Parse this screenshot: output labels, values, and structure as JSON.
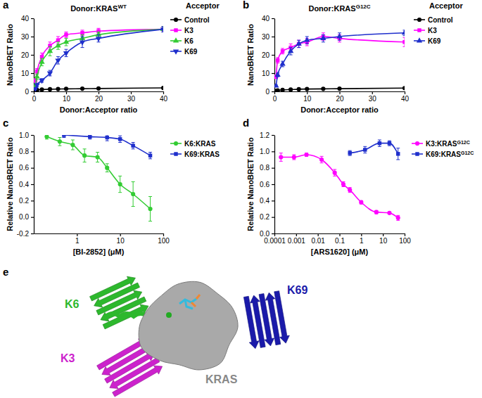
{
  "chart_data": [
    {
      "panel_label": "a",
      "type": "line",
      "title": {
        "text": "Donor:KRAS",
        "superscript": "WT"
      },
      "x_label": "Donor:Acceptor ratio",
      "y_label": "NanoBRET Ratio",
      "legend_title": "Acceptor",
      "legend": "right",
      "x": [
        0.5,
        1,
        2.5,
        5,
        7.5,
        10,
        15,
        20,
        40
      ],
      "xlim": [
        0,
        40
      ],
      "xticks": [
        0,
        10,
        20,
        30,
        40
      ],
      "ylim": [
        0,
        40
      ],
      "yticks": [
        0,
        10,
        20,
        30,
        40
      ],
      "series": [
        {
          "name": "Control",
          "color": "#000000",
          "marker": "circle",
          "values": [
            0.5,
            0.8,
            1,
            1.2,
            1.3,
            1.4,
            1.5,
            1.6,
            1.9
          ],
          "errors": [
            0.1,
            0.1,
            0.1,
            0.1,
            0.1,
            0.1,
            0.1,
            0.1,
            0.1
          ]
        },
        {
          "name": "K3",
          "color": "#ff00ff",
          "marker": "square",
          "values": [
            6,
            11,
            19,
            25,
            28,
            31,
            32,
            33,
            34
          ],
          "errors": [
            1,
            1.5,
            2,
            2,
            2,
            1.5,
            1.5,
            1.5,
            1.5
          ]
        },
        {
          "name": "K6",
          "color": "#33cc33",
          "marker": "triangle-up",
          "values": [
            3,
            8,
            16,
            22,
            25,
            27,
            29,
            31,
            34
          ],
          "errors": [
            1,
            1.5,
            2,
            2.5,
            2,
            2,
            2,
            1.5,
            1.5
          ]
        },
        {
          "name": "K69",
          "color": "#1f2fcc",
          "marker": "triangle-down",
          "values": [
            1.5,
            3.5,
            6,
            10,
            17,
            21,
            27,
            29,
            34
          ],
          "errors": [
            0.5,
            1,
            1,
            1.5,
            2,
            2,
            3,
            2,
            1.5
          ]
        }
      ]
    },
    {
      "panel_label": "b",
      "type": "line",
      "title": {
        "text": "Donor:KRAS",
        "superscript": "G12C"
      },
      "x_label": "Donor:Acceptor ratio",
      "y_label": "NanoBRET Ratio",
      "legend_title": "Acceptor",
      "legend": "right",
      "x": [
        0.5,
        1,
        2.5,
        5,
        7.5,
        10,
        15,
        20,
        40
      ],
      "xlim": [
        0,
        40
      ],
      "xticks": [
        0,
        10,
        20,
        30,
        40
      ],
      "ylim": [
        0,
        40
      ],
      "yticks": [
        0,
        10,
        20,
        30,
        40
      ],
      "series": [
        {
          "name": "Control",
          "color": "#000000",
          "marker": "circle",
          "values": [
            0.3,
            0.5,
            0.8,
            1,
            1.2,
            1.3,
            1.4,
            1.5,
            1.8
          ],
          "errors": [
            0.1,
            0.1,
            0.1,
            0.1,
            0.1,
            0.1,
            0.1,
            0.1,
            0.1
          ]
        },
        {
          "name": "K3",
          "color": "#ff00ff",
          "marker": "square",
          "values": [
            8,
            17,
            22,
            24,
            26,
            27,
            30,
            29,
            27
          ],
          "errors": [
            1,
            1.5,
            1.5,
            2,
            2,
            2,
            2,
            2,
            2.5
          ]
        },
        {
          "name": "K69",
          "color": "#1f2fcc",
          "marker": "triangle-up",
          "values": [
            3,
            9,
            15,
            22,
            26,
            28,
            29,
            30,
            32
          ],
          "errors": [
            0.5,
            1,
            1.5,
            2,
            2,
            2,
            2,
            2,
            1.5
          ]
        }
      ]
    },
    {
      "panel_label": "c",
      "type": "line",
      "log": "x",
      "x_label": "[BI-2852] (μM)",
      "y_label": "Relative NanoBRET Ratio",
      "legend": "right",
      "xlim": [
        0.1,
        100
      ],
      "xticks": [
        1,
        10,
        100
      ],
      "ylim": [
        -0.2,
        1.0
      ],
      "yticks": [
        -0.2,
        {
          "value": 0,
          "label": "0.0"
        },
        0.2,
        0.4,
        0.6,
        0.8,
        {
          "value": 1,
          "label": "1.0"
        }
      ],
      "series": [
        {
          "name": "K6:KRAS",
          "color": "#33cc33",
          "marker": "circle",
          "x": [
            0.2,
            0.4,
            0.8,
            1.5,
            3,
            5,
            10,
            20,
            50
          ],
          "values": [
            0.98,
            0.92,
            0.88,
            0.75,
            0.73,
            0.6,
            0.4,
            0.28,
            0.1
          ],
          "errors": [
            0.03,
            0.05,
            0.06,
            0.08,
            0.06,
            0.05,
            0.1,
            0.15,
            0.15
          ]
        },
        {
          "name": "K69:KRAS",
          "color": "#1f2fcc",
          "marker": "square",
          "x": [
            0.5,
            2,
            5,
            10,
            20,
            50
          ],
          "values": [
            1.0,
            0.98,
            0.97,
            0.95,
            0.87,
            0.75
          ],
          "errors": [
            0.03,
            0.03,
            0.04,
            0.04,
            0.04,
            0.04
          ]
        }
      ]
    },
    {
      "panel_label": "d",
      "type": "line",
      "log": "x",
      "x_label": "[ARS1620] (μM)",
      "y_label": "Relative NanoBRET Ratio",
      "legend": "right",
      "xlim": [
        0.0001,
        100
      ],
      "xticks": [
        0.0001,
        0.001,
        0.01,
        0.1,
        1,
        10,
        100
      ],
      "ylim": [
        0,
        1.2
      ],
      "yticks": [
        {
          "value": 0,
          "label": "0.0"
        },
        0.2,
        0.4,
        0.6,
        0.8,
        {
          "value": 1,
          "label": "1.0"
        },
        1.2
      ],
      "series": [
        {
          "name": "K3:KRAS",
          "name_superscript": "G12C",
          "color": "#ff00ff",
          "marker": "circle",
          "x": [
            0.0002,
            0.0008,
            0.003,
            0.015,
            0.06,
            0.15,
            0.3,
            1,
            5,
            20,
            50
          ],
          "values": [
            0.93,
            0.93,
            0.96,
            0.9,
            0.74,
            0.6,
            0.53,
            0.38,
            0.26,
            0.25,
            0.19
          ],
          "errors": [
            0.05,
            0.03,
            0.02,
            0.04,
            0.04,
            0.03,
            0.03,
            0.02,
            0.02,
            0.01,
            0.03
          ]
        },
        {
          "name": "K69:KRAS",
          "name_superscript": "G12C",
          "color": "#1f2fcc",
          "marker": "square",
          "x": [
            0.3,
            1.5,
            7,
            20,
            50
          ],
          "values": [
            0.98,
            1.02,
            1.1,
            1.1,
            0.97
          ],
          "errors": [
            0.03,
            0.04,
            0.04,
            0.03,
            0.07
          ]
        }
      ]
    }
  ],
  "diagram": {
    "panel_label": "e",
    "labels": [
      {
        "text": "K6",
        "color": "#2db82d"
      },
      {
        "text": "K69",
        "color": "#1a1aaa"
      },
      {
        "text": "K3",
        "color": "#cc22cc"
      },
      {
        "text": "KRAS",
        "color": "#888888"
      }
    ]
  }
}
